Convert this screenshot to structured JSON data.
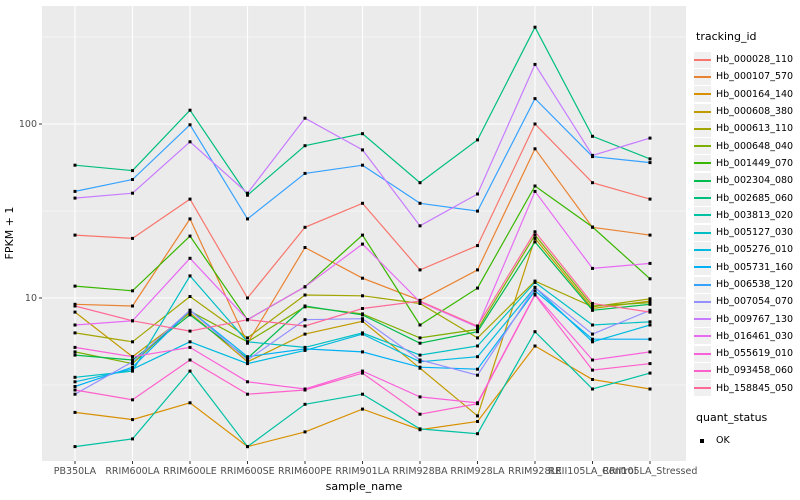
{
  "chart_data": {
    "type": "line",
    "title": "",
    "xlabel": "sample_name",
    "ylabel": "FPKM + 1",
    "y_scale": "log10",
    "y_tick_values": [
      10,
      100
    ],
    "y_tick_labels": [
      "10",
      "100"
    ],
    "ylim": [
      1.1,
      480
    ],
    "grid": true,
    "panel_bg": "#EBEBEB",
    "grid_color": "#FFFFFF",
    "point_shape": "filled-black-square",
    "legend_position": "right",
    "x_categories": [
      "PB350LA",
      "RRIM600LA",
      "RRIM600LE",
      "RRIM600SE",
      "RRIM600PE",
      "RRIM901LA",
      "RRIM928BA",
      "RRIM928LA",
      "RRIM928LE",
      "RRII105LA_Control",
      "RRII105LA_Stressed"
    ],
    "series": [
      {
        "name": "Hb_000028_110",
        "color": "#F8766D",
        "values": [
          23,
          22,
          37,
          10,
          25.5,
          35,
          14.5,
          20,
          100,
          46,
          37
        ]
      },
      {
        "name": "Hb_000107_570",
        "color": "#EA8331",
        "values": [
          9.2,
          9.0,
          28.5,
          5.5,
          19.5,
          13,
          9.7,
          14.5,
          72,
          25.5,
          23
        ]
      },
      {
        "name": "Hb_000164_140",
        "color": "#D89000",
        "values": [
          2.2,
          2.0,
          2.5,
          1.4,
          1.7,
          2.3,
          1.75,
          1.95,
          5.3,
          3.4,
          3.0
        ]
      },
      {
        "name": "Hb_000608_380",
        "color": "#C09B00",
        "values": [
          8.3,
          4.6,
          8.2,
          4.3,
          6.2,
          7.35,
          3.95,
          2.1,
          22,
          8.7,
          9.6
        ]
      },
      {
        "name": "Hb_000613_110",
        "color": "#A3A500",
        "values": [
          6.3,
          5.6,
          10.2,
          5.9,
          10.4,
          10.3,
          9.3,
          5.9,
          12.5,
          8.9,
          9.9
        ]
      },
      {
        "name": "Hb_000648_040",
        "color": "#7CAE00",
        "values": [
          4.9,
          4.2,
          8.4,
          5.6,
          8.9,
          8.1,
          5.9,
          6.6,
          23,
          9.0,
          9.4
        ]
      },
      {
        "name": "Hb_001449_070",
        "color": "#39B600",
        "values": [
          11.7,
          11.0,
          22.7,
          7.5,
          11.6,
          23,
          7.0,
          11.4,
          44,
          25.6,
          12.9
        ]
      },
      {
        "name": "Hb_002304_080",
        "color": "#00BB4E",
        "values": [
          4.7,
          4.4,
          8.0,
          4.5,
          9.0,
          8.0,
          5.5,
          6.4,
          21,
          8.5,
          9.2
        ]
      },
      {
        "name": "Hb_002685_060",
        "color": "#00BF7D",
        "values": [
          58,
          54,
          120,
          39,
          75,
          88,
          46,
          81,
          360,
          85,
          63
        ]
      },
      {
        "name": "Hb_003813_020",
        "color": "#00C1A3",
        "values": [
          1.4,
          1.55,
          3.8,
          1.4,
          2.45,
          2.8,
          1.77,
          1.66,
          6.4,
          3.0,
          3.7
        ]
      },
      {
        "name": "Hb_005127_030",
        "color": "#00BFC4",
        "values": [
          3.5,
          3.8,
          13.4,
          5.6,
          5.2,
          6.3,
          4.7,
          5.3,
          12.3,
          7.0,
          7.3
        ]
      },
      {
        "name": "Hb_005276_010",
        "color": "#00BAE0",
        "values": [
          3.3,
          3.9,
          5.6,
          4.2,
          5.0,
          6.2,
          4.3,
          4.6,
          11.5,
          5.6,
          7.0
        ]
      },
      {
        "name": "Hb_005731_160",
        "color": "#00B0F6",
        "values": [
          3.1,
          4.0,
          8.5,
          4.6,
          5.1,
          4.9,
          4.0,
          3.9,
          11.0,
          5.8,
          5.8
        ]
      },
      {
        "name": "Hb_006538_120",
        "color": "#35A2FF",
        "values": [
          41,
          48,
          99,
          28.5,
          52,
          58,
          35,
          31.6,
          140,
          65,
          60
        ]
      },
      {
        "name": "Hb_007054_070",
        "color": "#9590FF",
        "values": [
          2.8,
          4.3,
          8.5,
          4.4,
          7.5,
          7.6,
          4.4,
          3.6,
          11.5,
          6.2,
          8.5
        ]
      },
      {
        "name": "Hb_009767_130",
        "color": "#C77CFF",
        "values": [
          37.5,
          40,
          79,
          40,
          108,
          71,
          26,
          39.6,
          220,
          66,
          83
        ]
      },
      {
        "name": "Hb_016461_030",
        "color": "#E76BF3",
        "values": [
          7.0,
          7.4,
          16.9,
          7.5,
          11.6,
          20.4,
          9.5,
          6.8,
          41,
          14.8,
          15.8
        ]
      },
      {
        "name": "Hb_055619_010",
        "color": "#FA62DB",
        "values": [
          5.2,
          4.6,
          5.2,
          3.3,
          3.0,
          3.8,
          2.7,
          2.5,
          10.5,
          4.4,
          4.9
        ]
      },
      {
        "name": "Hb_093458_060",
        "color": "#FF61CC",
        "values": [
          2.96,
          2.6,
          4.4,
          2.8,
          2.96,
          3.7,
          2.15,
          2.47,
          10.4,
          3.85,
          4.2
        ]
      },
      {
        "name": "Hb_158845_050",
        "color": "#FF6A98",
        "values": [
          9.0,
          7.4,
          6.45,
          7.5,
          6.9,
          8.7,
          9.6,
          6.9,
          24,
          9.3,
          8.3
        ]
      }
    ]
  },
  "legend": {
    "tracking_title": "tracking_id",
    "quant_title": "quant_status",
    "quant_items": [
      {
        "label": "OK",
        "shape": "filled-black-square"
      }
    ]
  },
  "axes": {
    "x_title": "sample_name",
    "y_title": "FPKM + 1"
  }
}
